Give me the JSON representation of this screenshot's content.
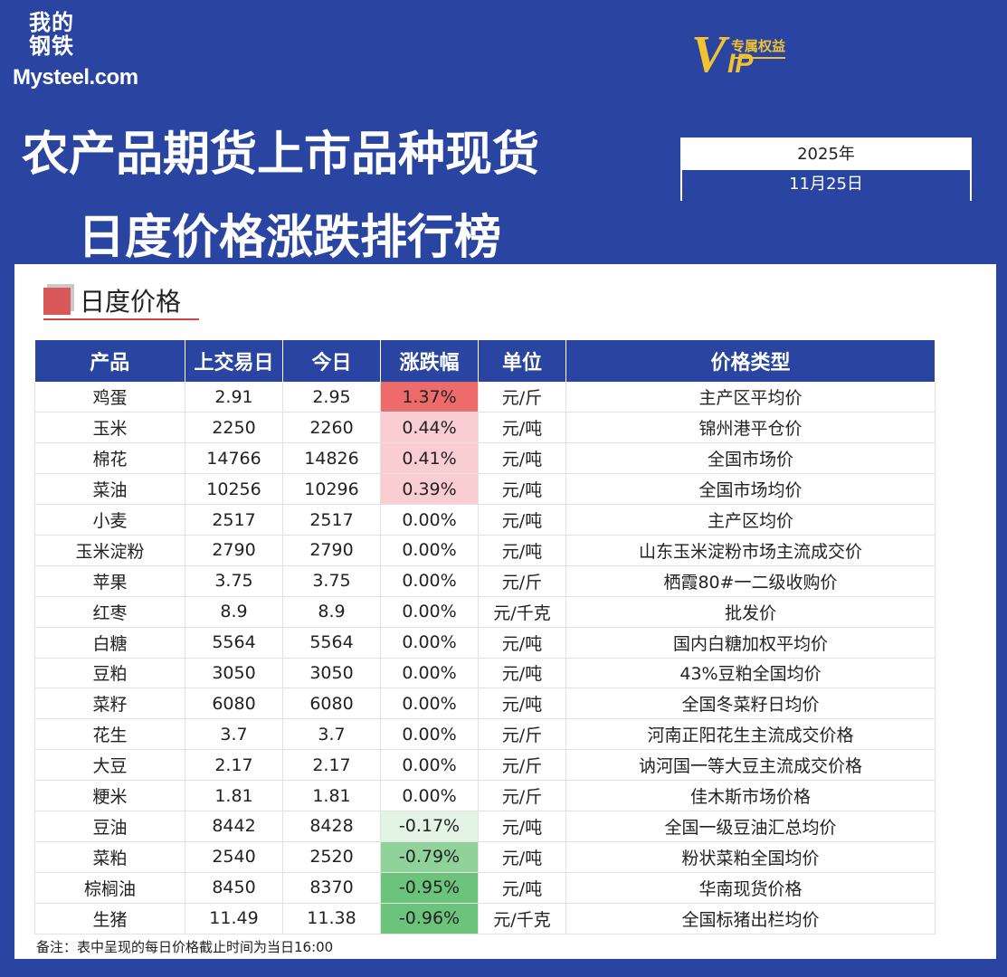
{
  "brand": {
    "logo_cn": "我的钢铁",
    "logo_en": "Mysteel.com"
  },
  "vip": {
    "badge_v": "V",
    "badge_ip": "IP",
    "badge_tag": "专属权益"
  },
  "title": {
    "line1": "农产品期货上市品种现货",
    "line2": "日度价格涨跌排行榜"
  },
  "date": {
    "year": "2025年",
    "day": "11月25日"
  },
  "section": {
    "label": "日度价格"
  },
  "table": {
    "headers": [
      "产品",
      "上交易日",
      "今日",
      "涨跌幅",
      "单位",
      "价格类型"
    ],
    "rows": [
      [
        "鸡蛋",
        "2.91",
        "2.95",
        "1.37%",
        "元/斤",
        "主产区平均价"
      ],
      [
        "玉米",
        "2250",
        "2260",
        "0.44%",
        "元/吨",
        "锦州港平仓价"
      ],
      [
        "棉花",
        "14766",
        "14826",
        "0.41%",
        "元/吨",
        "全国市场价"
      ],
      [
        "菜油",
        "10256",
        "10296",
        "0.39%",
        "元/吨",
        "全国市场均价"
      ],
      [
        "小麦",
        "2517",
        "2517",
        "0.00%",
        "元/吨",
        "主产区均价"
      ],
      [
        "玉米淀粉",
        "2790",
        "2790",
        "0.00%",
        "元/吨",
        "山东玉米淀粉市场主流成交价"
      ],
      [
        "苹果",
        "3.75",
        "3.75",
        "0.00%",
        "元/斤",
        "栖霞80#一二级收购价"
      ],
      [
        "红枣",
        "8.9",
        "8.9",
        "0.00%",
        "元/千克",
        "批发价"
      ],
      [
        "白糖",
        "5564",
        "5564",
        "0.00%",
        "元/吨",
        "国内白糖加权平均价"
      ],
      [
        "豆粕",
        "3050",
        "3050",
        "0.00%",
        "元/吨",
        "43%豆粕全国均价"
      ],
      [
        "菜籽",
        "6080",
        "6080",
        "0.00%",
        "元/吨",
        "全国冬菜籽日均价"
      ],
      [
        "花生",
        "3.7",
        "3.7",
        "0.00%",
        "元/斤",
        "河南正阳花生主流成交价格"
      ],
      [
        "大豆",
        "2.17",
        "2.17",
        "0.00%",
        "元/斤",
        "讷河国一等大豆主流成交价格"
      ],
      [
        "粳米",
        "1.81",
        "1.81",
        "0.00%",
        "元/斤",
        "佳木斯市场价格"
      ],
      [
        "豆油",
        "8442",
        "8428",
        "-0.17%",
        "元/吨",
        "全国一级豆油汇总均价"
      ],
      [
        "菜粕",
        "2540",
        "2520",
        "-0.79%",
        "元/吨",
        "粉状菜粕全国均价"
      ],
      [
        "棕榈油",
        "8450",
        "8370",
        "-0.95%",
        "元/吨",
        "华南现货价格"
      ],
      [
        "生猪",
        "11.49",
        "11.38",
        "-0.96%",
        "元/千克",
        "全国标猪出栏均价"
      ]
    ],
    "change_values": [
      1.37,
      0.44,
      0.41,
      0.39,
      0,
      0,
      0,
      0,
      0,
      0,
      0,
      0,
      0,
      0,
      -0.17,
      -0.79,
      -0.95,
      -0.96
    ]
  },
  "note": "备注：表中呈现的每日价格截止时间为当日16:00",
  "colors": {
    "background": "#2a45a1",
    "header": "#2a45a1",
    "up_strong": "#ee6b6b",
    "up_light": "#f9cdd1",
    "down_light": "#e3f3e4",
    "down_mid": "#8fd39a",
    "down_strong": "#6cc47c"
  }
}
